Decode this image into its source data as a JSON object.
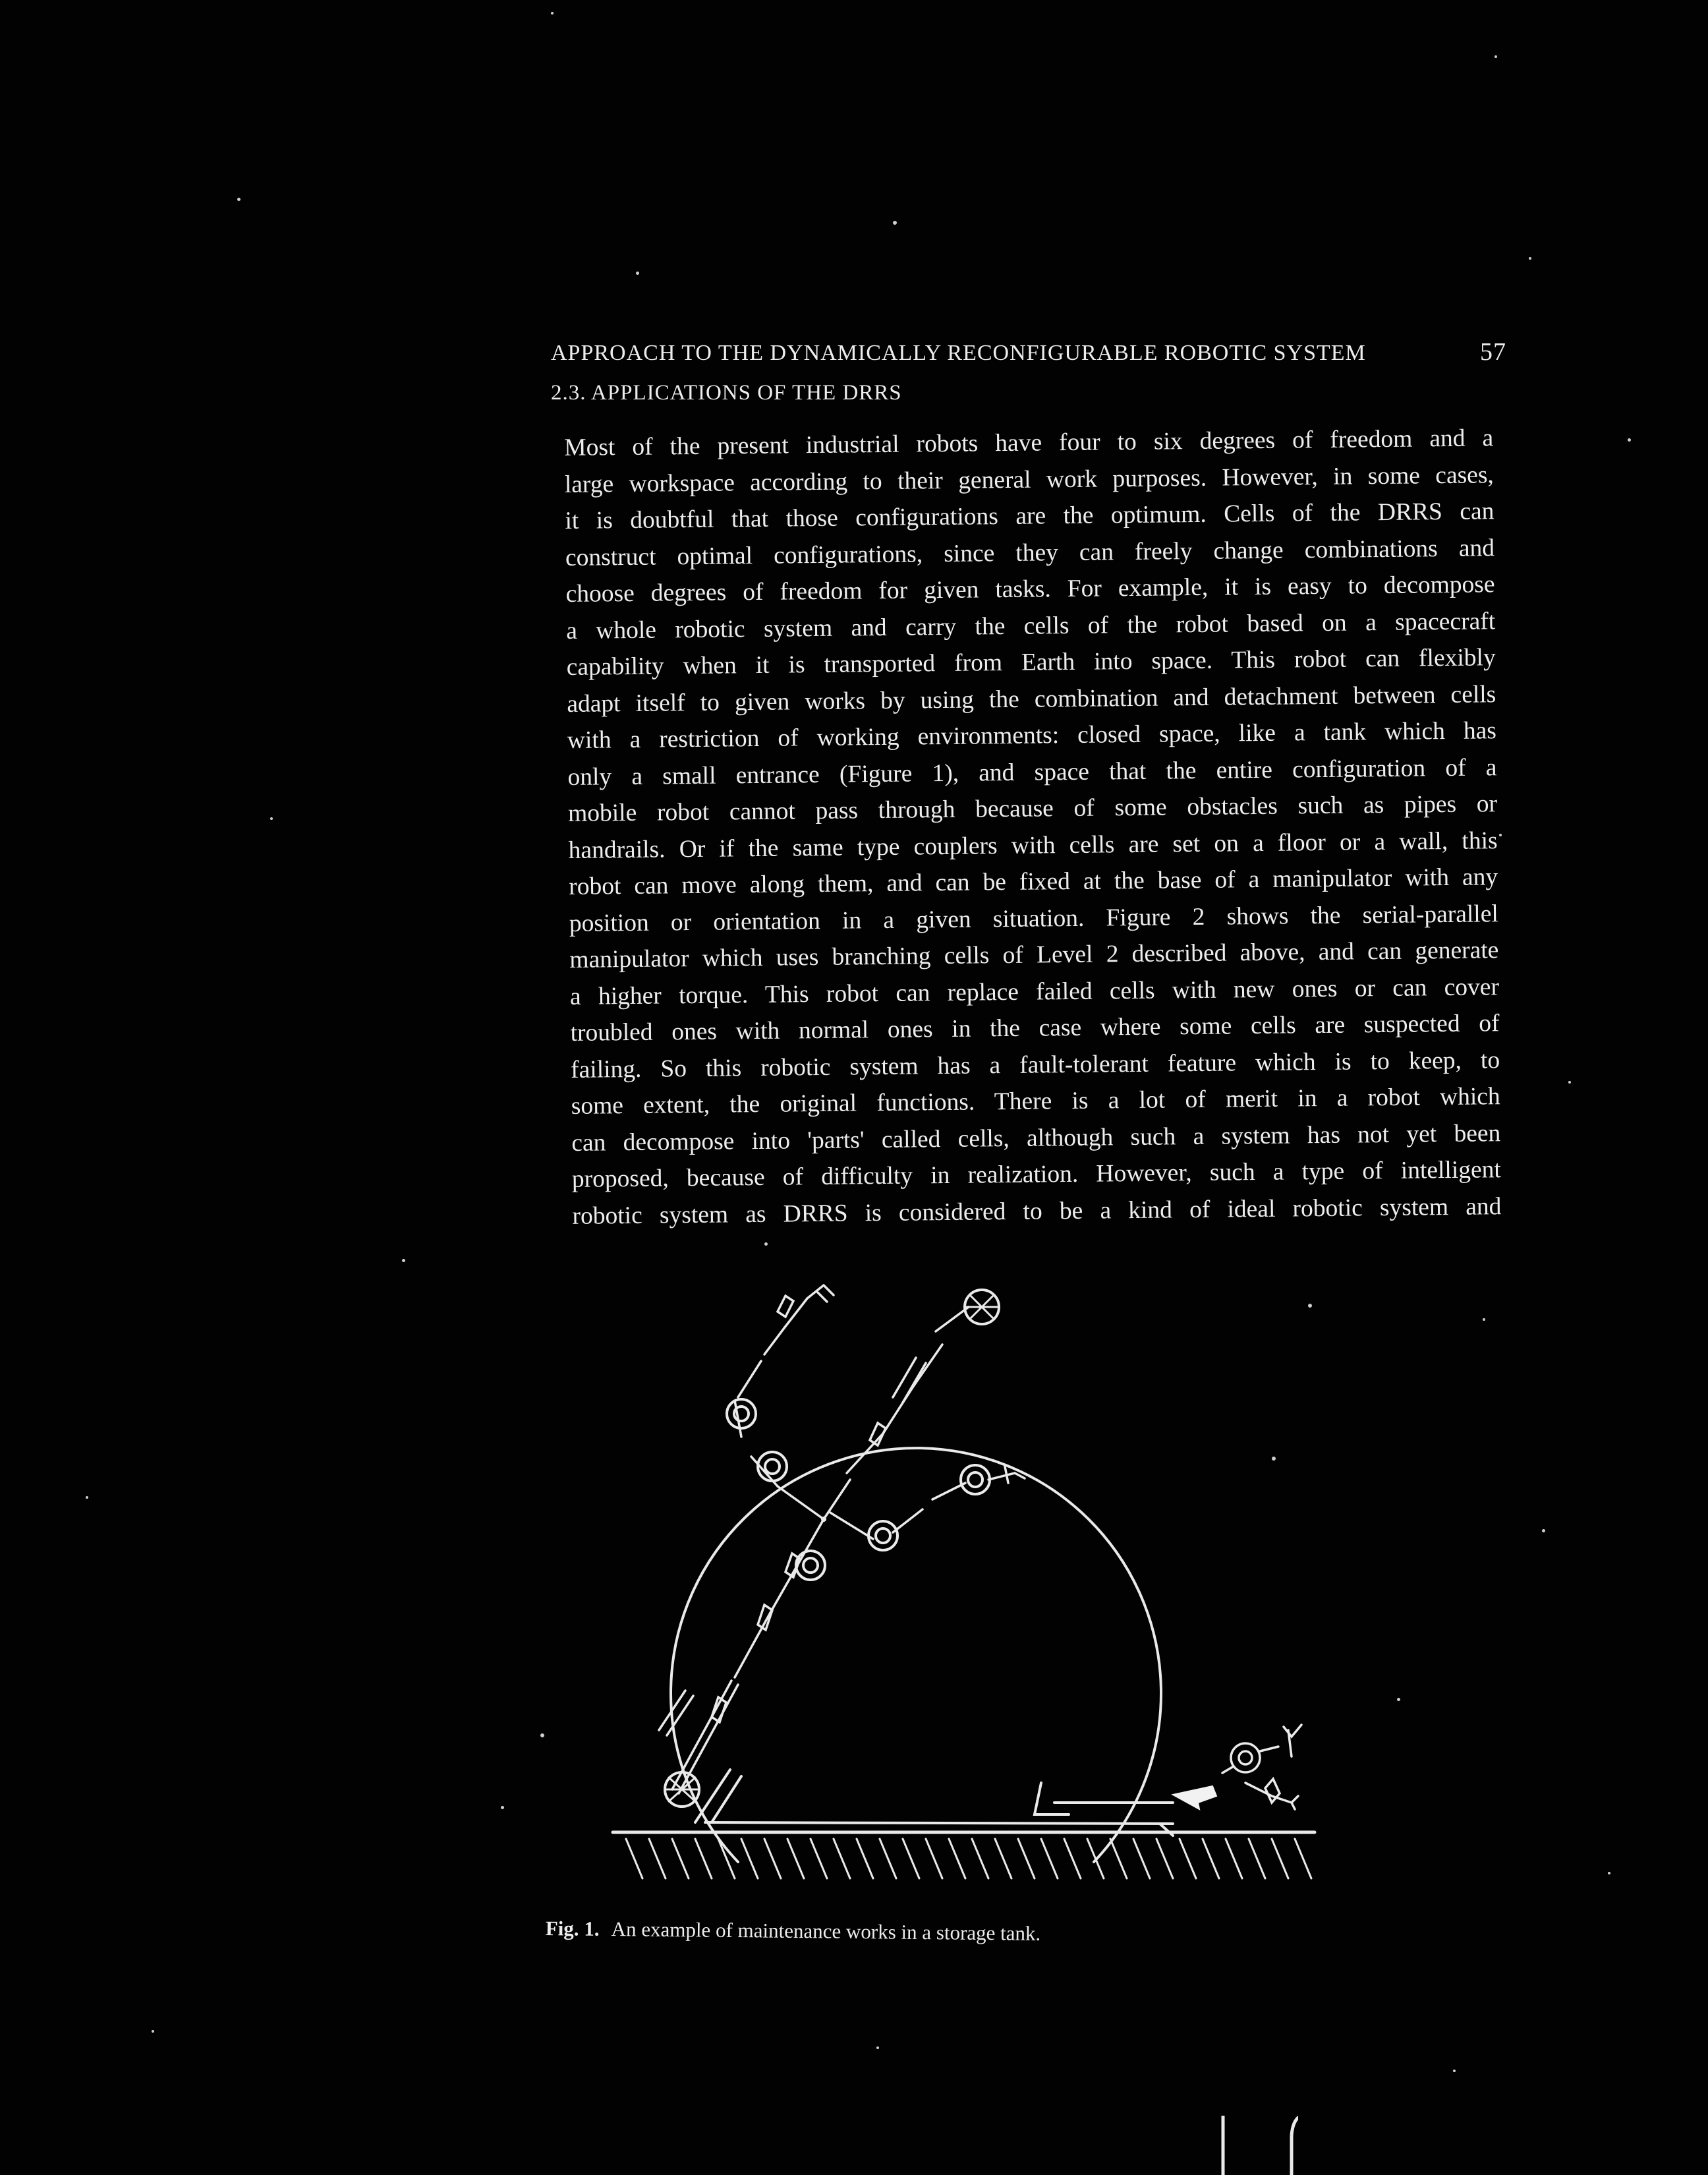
{
  "header": {
    "running_title": "APPROACH TO THE DYNAMICALLY RECONFIGURABLE ROBOTIC SYSTEM",
    "page_number": "57"
  },
  "section": {
    "title": "2.3. APPLICATIONS OF THE DRRS"
  },
  "body": {
    "lines": [
      "Most of the present industrial robots have four to six degrees of freedom and a",
      "large workspace according to their general work purposes. However, in some cases,",
      "it is doubtful that those configurations are the optimum. Cells of the DRRS can",
      "construct optimal configurations, since they can freely change combinations and",
      "choose degrees of freedom for given tasks. For example, it is easy to decompose",
      "a whole robotic system and carry the cells of the robot based on a spacecraft",
      "capability when it is transported from Earth into space. This robot can flexibly",
      "adapt itself to given works by using the combination and detachment between cells",
      "with a restriction of working environments: closed space, like a tank which has",
      "only a small entrance (Figure 1), and space that the entire configuration of a",
      "mobile robot cannot pass through because of some obstacles such as pipes or",
      "handrails. Or if the same type couplers with cells are set on a floor or a wall, this",
      "robot can move along them, and can be fixed at the base of a manipulator with any",
      "position or orientation in a given situation. Figure 2 shows the serial-parallel",
      "manipulator which uses branching cells of Level 2 described above, and can generate",
      "a higher torque. This robot can replace failed cells with new ones or can cover",
      "troubled ones with normal ones in the case where some cells are suspected of",
      "failing. So this robotic system has a fault-tolerant feature which is to keep, to",
      "some extent, the original functions. There is a lot of merit in a robot which",
      "can decompose into 'parts' called cells, although such a system has not yet been",
      "proposed, because of difficulty in realization. However, such a type of intelligent",
      "robotic system as DRRS is considered to be a kind of ideal robotic system and"
    ]
  },
  "figure": {
    "caption_label": "Fig. 1.",
    "caption_text": "An example of maintenance works in a storage tank."
  }
}
